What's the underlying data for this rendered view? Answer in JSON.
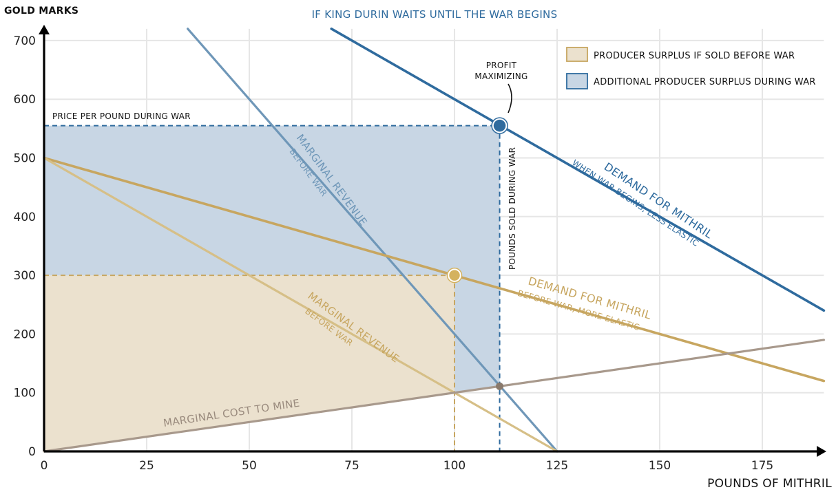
{
  "chart_data": {
    "type": "line",
    "title": "IF KING DURIN WAITS UNTIL THE WAR BEGINS",
    "ylabel": "GOLD MARKS",
    "xlabel": "POUNDS OF MITHRIL",
    "xlim": [
      0,
      190
    ],
    "ylim": [
      0,
      720
    ],
    "x_ticks": [
      0,
      25,
      50,
      75,
      100,
      125,
      150,
      175
    ],
    "y_ticks": [
      0,
      100,
      200,
      300,
      400,
      500,
      600,
      700
    ],
    "grid": true,
    "legend_position": "top-right",
    "series": [
      {
        "id": "demand_war",
        "x": [
          70,
          190
        ],
        "y": [
          720,
          240
        ],
        "color": "#2f6b9e"
      },
      {
        "id": "mr_war",
        "x": [
          35,
          125
        ],
        "y": [
          720,
          0
        ],
        "color": "#6f97b8"
      },
      {
        "id": "demand_before",
        "x": [
          0,
          190
        ],
        "y": [
          500,
          120
        ],
        "color": "#c7a660"
      },
      {
        "id": "mr_before",
        "x": [
          0,
          125
        ],
        "y": [
          500,
          0
        ],
        "color": "#d6bf87"
      },
      {
        "id": "marginal_cost",
        "x": [
          0,
          190
        ],
        "y": [
          0,
          190
        ],
        "color": "#a8998c"
      }
    ],
    "regions": [
      {
        "id": "ps_before",
        "legend": "PRODUCER SURPLUS IF SOLD BEFORE WAR",
        "color": "#ebe1ce",
        "border": "#c7a660",
        "polygon": [
          [
            0,
            0
          ],
          [
            0,
            300
          ],
          [
            100,
            300
          ],
          [
            100,
            100
          ]
        ]
      },
      {
        "id": "ps_during",
        "legend": "ADDITIONAL PRODUCER SURPLUS DURING WAR",
        "color": "#c8d6e4",
        "border": "#2f6b9e",
        "polygon": [
          [
            0,
            300
          ],
          [
            0,
            555
          ],
          [
            111,
            555
          ],
          [
            111,
            111
          ],
          [
            100,
            100
          ],
          [
            100,
            300
          ]
        ]
      }
    ],
    "points": [
      {
        "id": "war_optimum",
        "x": 111,
        "y": 555,
        "color": "#2f6b9e"
      },
      {
        "id": "before_optimum",
        "x": 100,
        "y": 300,
        "color": "#d4b25e"
      },
      {
        "id": "mc_mr_war",
        "x": 111,
        "y": 111,
        "color": "#8a7a6c"
      }
    ],
    "annotations": {
      "price_during_war": "PRICE PER POUND DURING WAR",
      "pounds_sold_during_war": "POUNDS SOLD DURING WAR",
      "profit_maximizing_1": "PROFIT",
      "profit_maximizing_2": "MAXIMIZING",
      "demand_war_1": "DEMAND FOR MITHRIL",
      "demand_war_2": "WHEN WAR BEGINS, LESS ELASTIC",
      "mr_war_1": "MARGINAL REVENUE",
      "mr_war_2": "BEFORE WAR",
      "demand_before_1": "DEMAND FOR MITHRIL",
      "demand_before_2": "BEFORE WAR, MORE ELASTIC",
      "mr_before_1": "MARGINAL REVENUE",
      "mr_before_2": "BEFORE WAR",
      "mc": "MARGINAL COST TO MINE"
    }
  }
}
